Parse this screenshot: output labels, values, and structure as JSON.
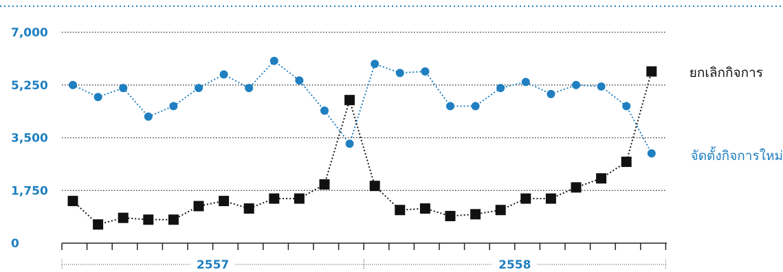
{
  "chart_data": {
    "type": "line",
    "y_ticks": [
      "7,000",
      "5,250",
      "3,500",
      "1,750",
      "0"
    ],
    "y_tick_values": [
      7000,
      5250,
      3500,
      1750,
      0
    ],
    "ylim": [
      0,
      7000
    ],
    "grid": true,
    "year_groups": [
      {
        "label": "2557",
        "months": 12
      },
      {
        "label": "2558",
        "months": 12
      }
    ],
    "series": [
      {
        "name": "จัดตั้งกิจการใหม่",
        "color": "#1f7fc0",
        "marker": "circle",
        "values": [
          5250,
          4850,
          5150,
          4200,
          4550,
          5150,
          5600,
          5150,
          6050,
          5400,
          4400,
          3300,
          5950,
          5650,
          5700,
          4550,
          4550,
          5150,
          5350,
          4950,
          5250,
          5200,
          4550,
          2980
        ]
      },
      {
        "name": "ยกเลิกกิจการ",
        "color": "#111111",
        "marker": "square",
        "values": [
          1400,
          620,
          840,
          780,
          780,
          1230,
          1400,
          1150,
          1480,
          1480,
          1950,
          4750,
          1900,
          1100,
          1150,
          900,
          960,
          1100,
          1480,
          1480,
          1850,
          2150,
          2700,
          5700
        ]
      }
    ]
  }
}
